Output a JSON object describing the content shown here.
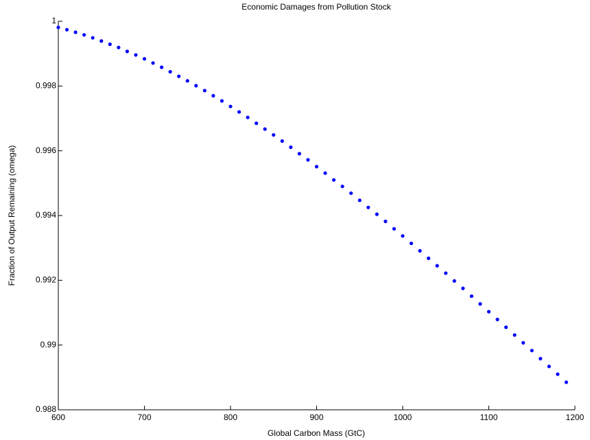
{
  "chart_data": {
    "type": "scatter",
    "title": "Economic Damages from Pollution Stock",
    "x_label": "Global Carbon Mass (GtC)",
    "y_label": "Fraction of Output Remaining (omega)",
    "color": "#0000ff",
    "xlim": [
      600,
      1200
    ],
    "xticks": [
      600,
      700,
      800,
      900,
      1000,
      1100,
      1200
    ],
    "ylim": [
      0.988,
      1
    ],
    "yticks": [
      0.988,
      0.99,
      0.992,
      0.994,
      0.996,
      0.998,
      1
    ],
    "x": [
      600,
      610,
      620,
      630,
      640,
      650,
      660,
      670,
      680,
      690,
      700,
      710,
      720,
      730,
      740,
      750,
      760,
      770,
      780,
      790,
      800,
      810,
      820,
      830,
      840,
      850,
      860,
      870,
      880,
      890,
      900,
      910,
      920,
      930,
      940,
      950,
      960,
      970,
      980,
      990,
      1000,
      1010,
      1020,
      1030,
      1040,
      1050,
      1060,
      1070,
      1080,
      1090,
      1100,
      1110,
      1120,
      1130,
      1140,
      1150,
      1160,
      1170,
      1180,
      1190
    ],
    "values": [
      0.99981,
      0.99974,
      0.99966,
      0.99958,
      0.99949,
      0.99939,
      0.99929,
      0.99919,
      0.99907,
      0.99896,
      0.99884,
      0.99871,
      0.99858,
      0.99844,
      0.9983,
      0.99816,
      0.99801,
      0.99786,
      0.9977,
      0.99754,
      0.99737,
      0.9972,
      0.99703,
      0.99685,
      0.99667,
      0.99649,
      0.9963,
      0.99611,
      0.99591,
      0.99572,
      0.99551,
      0.99531,
      0.9951,
      0.9949,
      0.99469,
      0.99447,
      0.99425,
      0.99404,
      0.99382,
      0.99359,
      0.99337,
      0.99314,
      0.99291,
      0.99268,
      0.99245,
      0.99222,
      0.99198,
      0.99175,
      0.99151,
      0.99127,
      0.99103,
      0.99079,
      0.99055,
      0.99031,
      0.99007,
      0.98983,
      0.98958,
      0.98934,
      0.9891,
      0.98885
    ]
  }
}
